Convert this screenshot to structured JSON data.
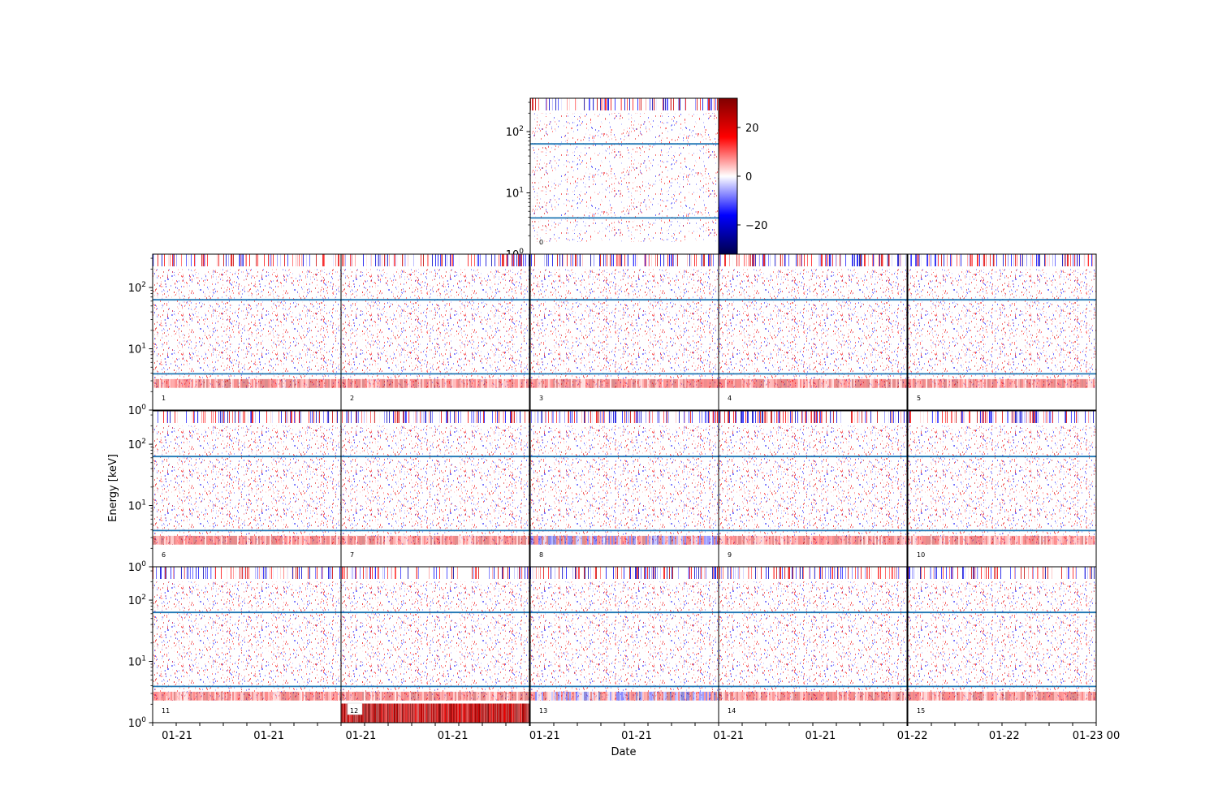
{
  "chart_data": {
    "type": "heatmap",
    "xlabel": "Date",
    "ylabel": "Energy [keV]",
    "y_scale": "log",
    "ylim": [
      1,
      350
    ],
    "y_ticks": [
      {
        "value": 100,
        "base": "10",
        "exp": "2"
      },
      {
        "value": 10,
        "base": "10",
        "exp": "1"
      },
      {
        "value": 1,
        "base": "10",
        "exp": "0"
      }
    ],
    "x_tick_labels": [
      "01-21",
      "01-21",
      "01-21",
      "01-21",
      "01-21",
      "01-21",
      "01-21",
      "01-21",
      "01-22",
      "01-22",
      "01-23 00"
    ],
    "colormap": "seismic",
    "colormap_colors": [
      "#00004c",
      "#0000ff",
      "#ffffff",
      "#ff0000",
      "#800000"
    ],
    "clim": [
      -32,
      32
    ],
    "colorbar_ticks": [
      {
        "value": 20,
        "label": "20"
      },
      {
        "value": 0,
        "label": "0"
      },
      {
        "value": -20,
        "label": "−20"
      }
    ],
    "hlines_keV": [
      63,
      3.9
    ],
    "hline_color": "#1f77b4",
    "panels": [
      {
        "id": "0",
        "label": "0",
        "row": 0,
        "col": 2
      },
      {
        "id": "1",
        "label": "1",
        "row": 1,
        "col": 0
      },
      {
        "id": "2",
        "label": "2",
        "row": 1,
        "col": 1
      },
      {
        "id": "3",
        "label": "3",
        "row": 1,
        "col": 2
      },
      {
        "id": "4",
        "label": "4",
        "row": 1,
        "col": 3
      },
      {
        "id": "5",
        "label": "5",
        "row": 1,
        "col": 4
      },
      {
        "id": "6",
        "label": "6",
        "row": 2,
        "col": 0
      },
      {
        "id": "7",
        "label": "7",
        "row": 2,
        "col": 1
      },
      {
        "id": "8",
        "label": "8",
        "row": 2,
        "col": 2
      },
      {
        "id": "9",
        "label": "9",
        "row": 2,
        "col": 3
      },
      {
        "id": "10",
        "label": "10",
        "row": 2,
        "col": 4
      },
      {
        "id": "11",
        "label": "11",
        "row": 3,
        "col": 0
      },
      {
        "id": "12",
        "label": "12",
        "row": 3,
        "col": 1,
        "note": "strong red band below ~2 keV"
      },
      {
        "id": "13",
        "label": "13",
        "row": 3,
        "col": 2
      },
      {
        "id": "14",
        "label": "14",
        "row": 3,
        "col": 3
      },
      {
        "id": "15",
        "label": "15",
        "row": 3,
        "col": 4
      }
    ]
  }
}
